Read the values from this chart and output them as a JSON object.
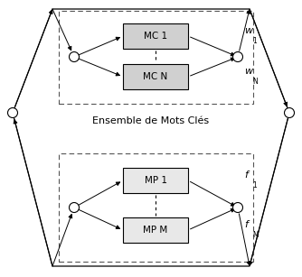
{
  "bg_color": "#ffffff",
  "box_color_top": "#d8d8d8",
  "box_color_bot": "#e8e8e8",
  "line_color": "#000000",
  "text_color": "#000000",
  "top_box1_label": "MC 1",
  "top_box2_label": "MC N",
  "bot_box1_label": "MP 1",
  "bot_box2_label": "MP M",
  "ensemble_label": "Ensemble de Mots Clés",
  "fig_width": 3.34,
  "fig_height": 3.07
}
